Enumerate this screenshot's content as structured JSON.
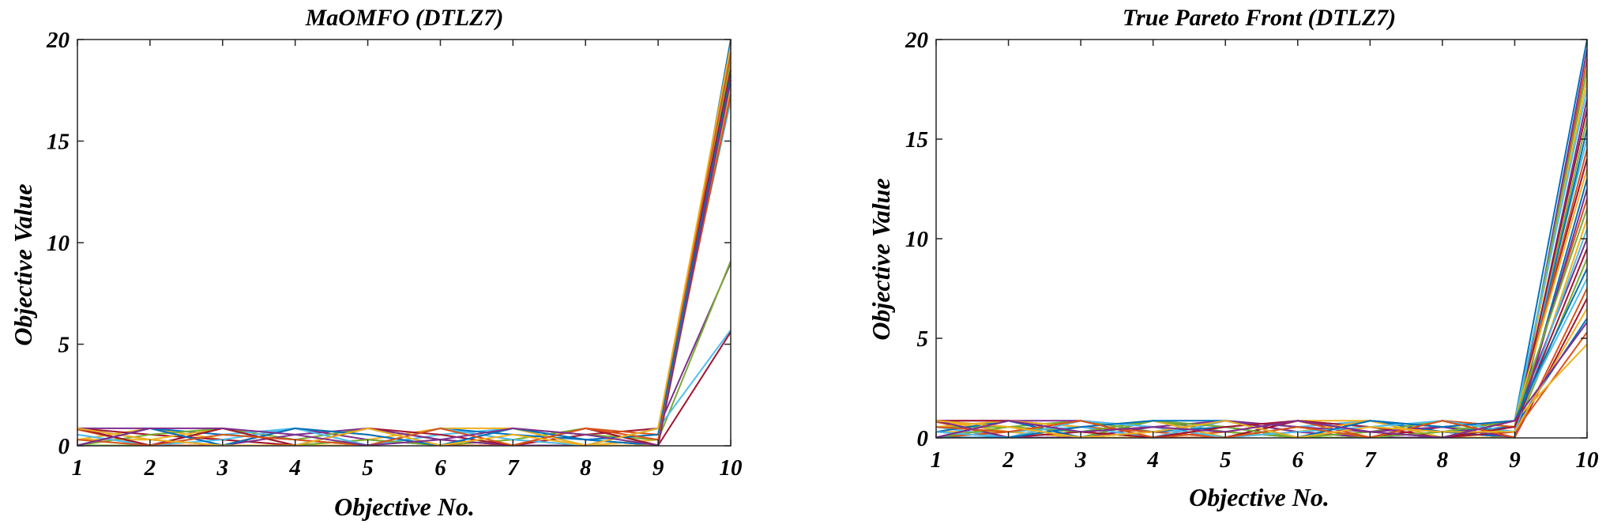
{
  "colors": [
    "#0072bd",
    "#d95319",
    "#edb120",
    "#7e2f8e",
    "#77ac30",
    "#4dbeee",
    "#a2142f"
  ],
  "chart_data": [
    {
      "type": "line",
      "subtype": "parallel-coordinates",
      "title": "MaOMFO (DTLZ7)",
      "xlabel": "Objective No.",
      "ylabel": "Objective Value",
      "x": [
        1,
        2,
        3,
        4,
        5,
        6,
        7,
        8,
        9,
        10
      ],
      "xticks": [
        "1",
        "2",
        "3",
        "4",
        "5",
        "6",
        "7",
        "8",
        "9",
        "10"
      ],
      "yticks": [
        "0",
        "5",
        "10",
        "15",
        "20"
      ],
      "ylim": [
        0,
        20
      ],
      "grid": false,
      "series": [
        {
          "values": [
            0.86,
            0.02,
            0.86,
            0.02,
            0.86,
            0.02,
            0.86,
            0.02,
            0.86,
            17.8
          ]
        },
        {
          "values": [
            0.02,
            0.86,
            0.02,
            0.86,
            0.02,
            0.86,
            0.02,
            0.86,
            0.02,
            19.9
          ]
        },
        {
          "values": [
            0.3,
            0.86,
            0.3,
            0.02,
            0.3,
            0.86,
            0.3,
            0.02,
            0.3,
            17.5
          ]
        },
        {
          "values": [
            0.86,
            0.3,
            0.02,
            0.86,
            0.3,
            0.02,
            0.86,
            0.3,
            0.02,
            19.6
          ]
        },
        {
          "values": [
            0.02,
            0.02,
            0.86,
            0.3,
            0.86,
            0.02,
            0.3,
            0.86,
            0.02,
            18.9
          ]
        },
        {
          "values": [
            0.55,
            0.02,
            0.55,
            0.86,
            0.02,
            0.55,
            0.86,
            0.02,
            0.86,
            17.0
          ]
        },
        {
          "values": [
            0.86,
            0.55,
            0.3,
            0.02,
            0.86,
            0.3,
            0.02,
            0.55,
            0.86,
            18.5
          ]
        },
        {
          "values": [
            0.02,
            0.86,
            0.55,
            0.3,
            0.02,
            0.86,
            0.55,
            0.3,
            0.02,
            20.0
          ]
        },
        {
          "values": [
            0.8,
            0.02,
            0.02,
            0.86,
            0.55,
            0.02,
            0.02,
            0.86,
            0.55,
            19.3
          ]
        },
        {
          "values": [
            0.3,
            0.3,
            0.86,
            0.02,
            0.02,
            0.86,
            0.86,
            0.02,
            0.02,
            17.6
          ]
        },
        {
          "values": [
            0.86,
            0.86,
            0.02,
            0.55,
            0.86,
            0.3,
            0.02,
            0.02,
            0.86,
            9.0
          ]
        },
        {
          "values": [
            0.02,
            0.55,
            0.86,
            0.02,
            0.3,
            0.02,
            0.86,
            0.55,
            0.3,
            9.1
          ]
        },
        {
          "values": [
            0.55,
            0.02,
            0.3,
            0.86,
            0.02,
            0.86,
            0.3,
            0.02,
            0.86,
            5.7
          ]
        },
        {
          "values": [
            0.86,
            0.02,
            0.86,
            0.02,
            0.86,
            0.55,
            0.02,
            0.86,
            0.02,
            5.6
          ]
        },
        {
          "values": [
            0.02,
            0.86,
            0.02,
            0.86,
            0.55,
            0.02,
            0.86,
            0.3,
            0.55,
            18.2
          ]
        },
        {
          "values": [
            0.3,
            0.02,
            0.55,
            0.3,
            0.02,
            0.86,
            0.02,
            0.86,
            0.3,
            17.3
          ]
        },
        {
          "values": [
            0.86,
            0.3,
            0.02,
            0.02,
            0.86,
            0.02,
            0.55,
            0.02,
            0.86,
            19.7
          ]
        },
        {
          "values": [
            0.02,
            0.86,
            0.86,
            0.55,
            0.02,
            0.3,
            0.86,
            0.55,
            0.02,
            18.0
          ]
        }
      ]
    },
    {
      "type": "line",
      "subtype": "parallel-coordinates",
      "title": "True Pareto Front (DTLZ7)",
      "xlabel": "Objective No.",
      "ylabel": "Objective Value",
      "x": [
        1,
        2,
        3,
        4,
        5,
        6,
        7,
        8,
        9,
        10
      ],
      "xticks": [
        "1",
        "2",
        "3",
        "4",
        "5",
        "6",
        "7",
        "8",
        "9",
        "10"
      ],
      "yticks": [
        "0",
        "5",
        "10",
        "15",
        "20"
      ],
      "ylim": [
        0,
        20
      ],
      "grid": false,
      "series": [
        {
          "values": [
            0.86,
            0.02,
            0.86,
            0.02,
            0.86,
            0.02,
            0.86,
            0.02,
            0.86,
            20.0
          ]
        },
        {
          "values": [
            0.02,
            0.86,
            0.02,
            0.86,
            0.02,
            0.86,
            0.02,
            0.86,
            0.02,
            19.0
          ]
        },
        {
          "values": [
            0.3,
            0.86,
            0.3,
            0.02,
            0.3,
            0.86,
            0.3,
            0.02,
            0.3,
            18.0
          ]
        },
        {
          "values": [
            0.86,
            0.3,
            0.02,
            0.86,
            0.3,
            0.02,
            0.86,
            0.3,
            0.02,
            17.0
          ]
        },
        {
          "values": [
            0.02,
            0.02,
            0.86,
            0.3,
            0.86,
            0.02,
            0.3,
            0.86,
            0.02,
            16.0
          ]
        },
        {
          "values": [
            0.55,
            0.02,
            0.55,
            0.86,
            0.02,
            0.55,
            0.86,
            0.02,
            0.86,
            15.0
          ]
        },
        {
          "values": [
            0.86,
            0.55,
            0.3,
            0.02,
            0.86,
            0.3,
            0.02,
            0.55,
            0.86,
            14.0
          ]
        },
        {
          "values": [
            0.02,
            0.86,
            0.55,
            0.3,
            0.02,
            0.86,
            0.55,
            0.3,
            0.02,
            13.0
          ]
        },
        {
          "values": [
            0.8,
            0.02,
            0.02,
            0.86,
            0.55,
            0.02,
            0.02,
            0.86,
            0.55,
            12.0
          ]
        },
        {
          "values": [
            0.3,
            0.3,
            0.86,
            0.02,
            0.02,
            0.86,
            0.86,
            0.02,
            0.02,
            11.0
          ]
        },
        {
          "values": [
            0.86,
            0.86,
            0.02,
            0.55,
            0.86,
            0.3,
            0.02,
            0.02,
            0.86,
            10.0
          ]
        },
        {
          "values": [
            0.02,
            0.55,
            0.86,
            0.02,
            0.3,
            0.02,
            0.86,
            0.55,
            0.3,
            9.0
          ]
        },
        {
          "values": [
            0.55,
            0.02,
            0.3,
            0.86,
            0.02,
            0.86,
            0.3,
            0.02,
            0.86,
            8.0
          ]
        },
        {
          "values": [
            0.86,
            0.02,
            0.86,
            0.02,
            0.86,
            0.55,
            0.02,
            0.86,
            0.02,
            7.0
          ]
        },
        {
          "values": [
            0.02,
            0.86,
            0.02,
            0.86,
            0.55,
            0.02,
            0.86,
            0.3,
            0.55,
            6.0
          ]
        },
        {
          "values": [
            0.3,
            0.02,
            0.55,
            0.3,
            0.02,
            0.86,
            0.02,
            0.86,
            0.3,
            5.3
          ]
        },
        {
          "values": [
            0.86,
            0.3,
            0.02,
            0.02,
            0.86,
            0.02,
            0.55,
            0.02,
            0.86,
            4.7
          ]
        },
        {
          "values": [
            0.02,
            0.86,
            0.86,
            0.55,
            0.02,
            0.3,
            0.86,
            0.55,
            0.02,
            19.5
          ]
        },
        {
          "values": [
            0.55,
            0.55,
            0.02,
            0.86,
            0.3,
            0.02,
            0.3,
            0.86,
            0.55,
            18.5
          ]
        },
        {
          "values": [
            0.02,
            0.3,
            0.55,
            0.02,
            0.86,
            0.55,
            0.02,
            0.3,
            0.86,
            17.5
          ]
        },
        {
          "values": [
            0.86,
            0.02,
            0.3,
            0.55,
            0.02,
            0.86,
            0.55,
            0.02,
            0.3,
            16.5
          ]
        },
        {
          "values": [
            0.3,
            0.86,
            0.02,
            0.3,
            0.55,
            0.02,
            0.86,
            0.55,
            0.02,
            15.5
          ]
        },
        {
          "values": [
            0.02,
            0.3,
            0.86,
            0.02,
            0.3,
            0.86,
            0.02,
            0.86,
            0.55,
            14.5
          ]
        },
        {
          "values": [
            0.55,
            0.86,
            0.55,
            0.86,
            0.02,
            0.3,
            0.86,
            0.02,
            0.86,
            13.5
          ]
        },
        {
          "values": [
            0.86,
            0.02,
            0.02,
            0.3,
            0.86,
            0.55,
            0.3,
            0.55,
            0.02,
            12.5
          ]
        },
        {
          "values": [
            0.02,
            0.55,
            0.3,
            0.86,
            0.55,
            0.02,
            0.02,
            0.3,
            0.86,
            11.5
          ]
        },
        {
          "values": [
            0.3,
            0.02,
            0.86,
            0.55,
            0.02,
            0.3,
            0.55,
            0.86,
            0.3,
            10.5
          ]
        },
        {
          "values": [
            0.86,
            0.86,
            0.3,
            0.02,
            0.55,
            0.86,
            0.3,
            0.02,
            0.55,
            9.5
          ]
        },
        {
          "values": [
            0.02,
            0.02,
            0.55,
            0.86,
            0.86,
            0.02,
            0.86,
            0.55,
            0.86,
            8.5
          ]
        },
        {
          "values": [
            0.55,
            0.3,
            0.86,
            0.02,
            0.02,
            0.55,
            0.02,
            0.86,
            0.02,
            7.5
          ]
        },
        {
          "values": [
            0.86,
            0.55,
            0.02,
            0.3,
            0.86,
            0.02,
            0.55,
            0.3,
            0.3,
            6.5
          ]
        },
        {
          "values": [
            0.02,
            0.86,
            0.3,
            0.55,
            0.3,
            0.86,
            0.3,
            0.02,
            0.86,
            5.8
          ]
        }
      ]
    }
  ]
}
